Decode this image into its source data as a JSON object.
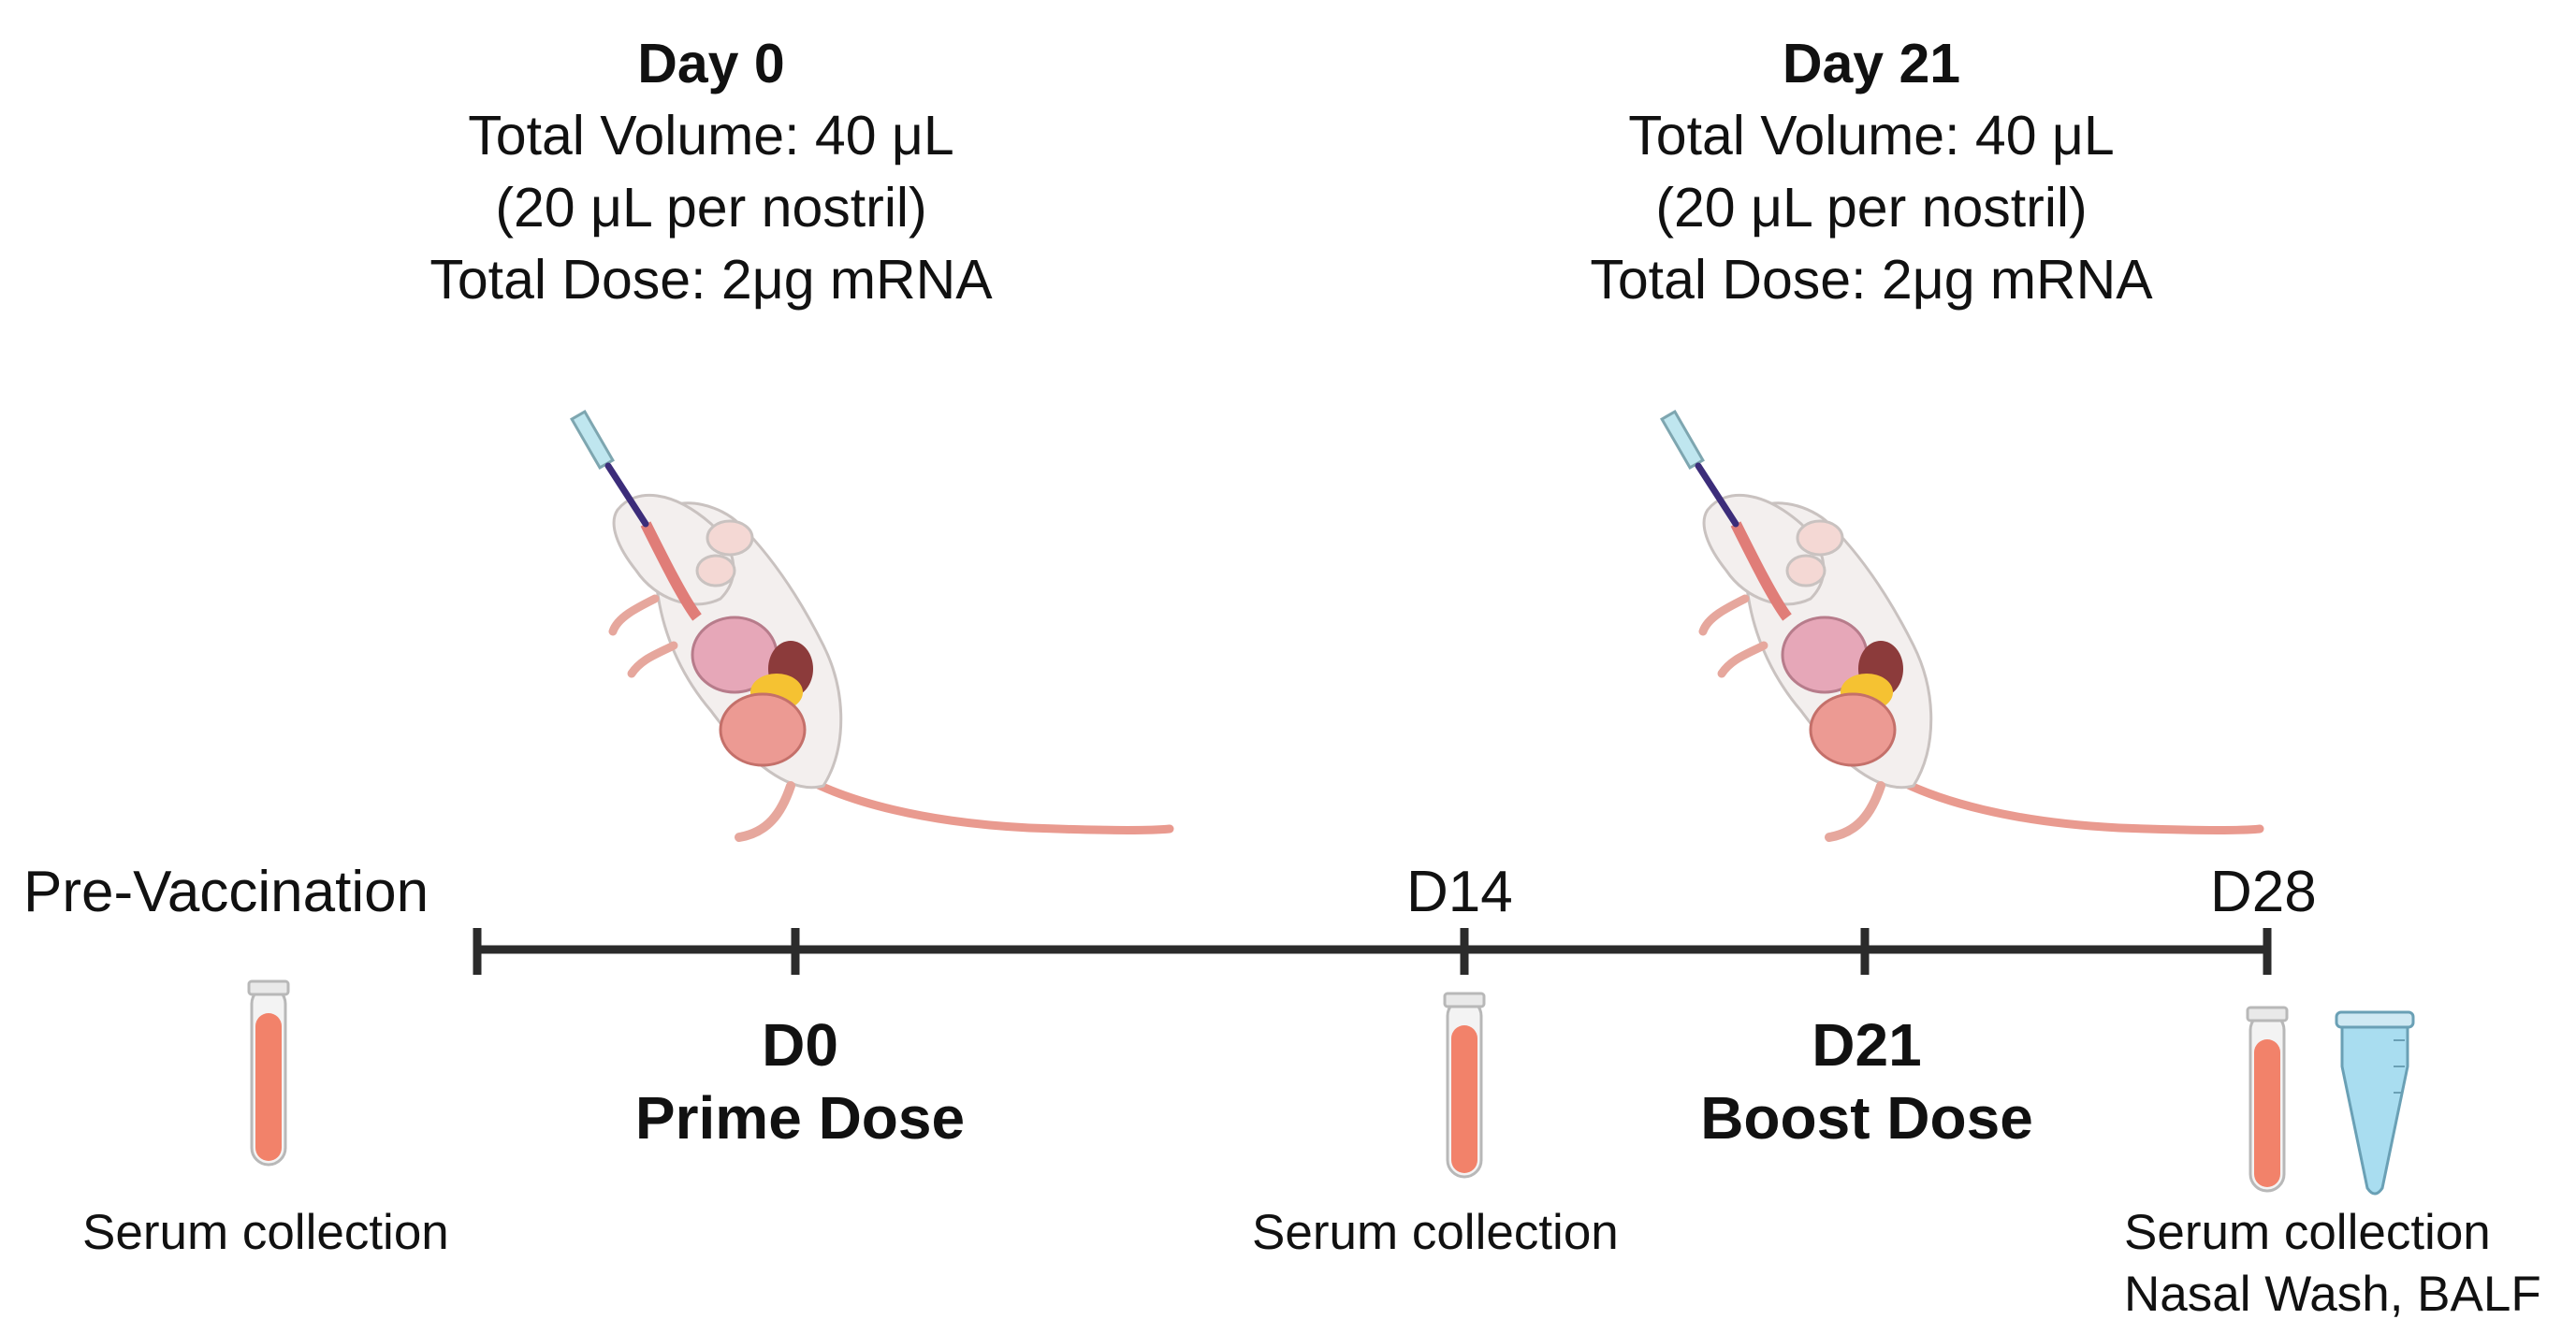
{
  "doses": [
    {
      "day": "Day 0",
      "volume": "Total Volume: 40 μL",
      "per_nostril": "(20 μL per nostril)",
      "dose": "Total Dose: 2μg mRNA"
    },
    {
      "day": "Day 21",
      "volume": "Total Volume: 40 μL",
      "per_nostril": "(20 μL per nostril)",
      "dose": "Total Dose: 2μg mRNA"
    }
  ],
  "timeline": {
    "pre_label": "Pre-Vaccination",
    "d14_label": "D14",
    "d28_label": "D28",
    "prime": {
      "code": "D0",
      "name": "Prime Dose"
    },
    "boost": {
      "code": "D21",
      "name": "Boost Dose"
    }
  },
  "collections": {
    "pre": "Serum collection",
    "d14": "Serum collection",
    "d28_line1": "Serum collection",
    "d28_line2": "Nasal Wash, BALF"
  },
  "colors": {
    "timeline": "#2b2b2b",
    "serum": "#f2826a",
    "tube_liquid": "#a9ddf0",
    "mouse_body": "#f3efee",
    "organs": "#e89a9a",
    "fat": "#f5c232"
  },
  "icons": [
    "pipette-icon",
    "mouse-icon",
    "blood-tube-icon",
    "microcentrifuge-tube-icon"
  ]
}
